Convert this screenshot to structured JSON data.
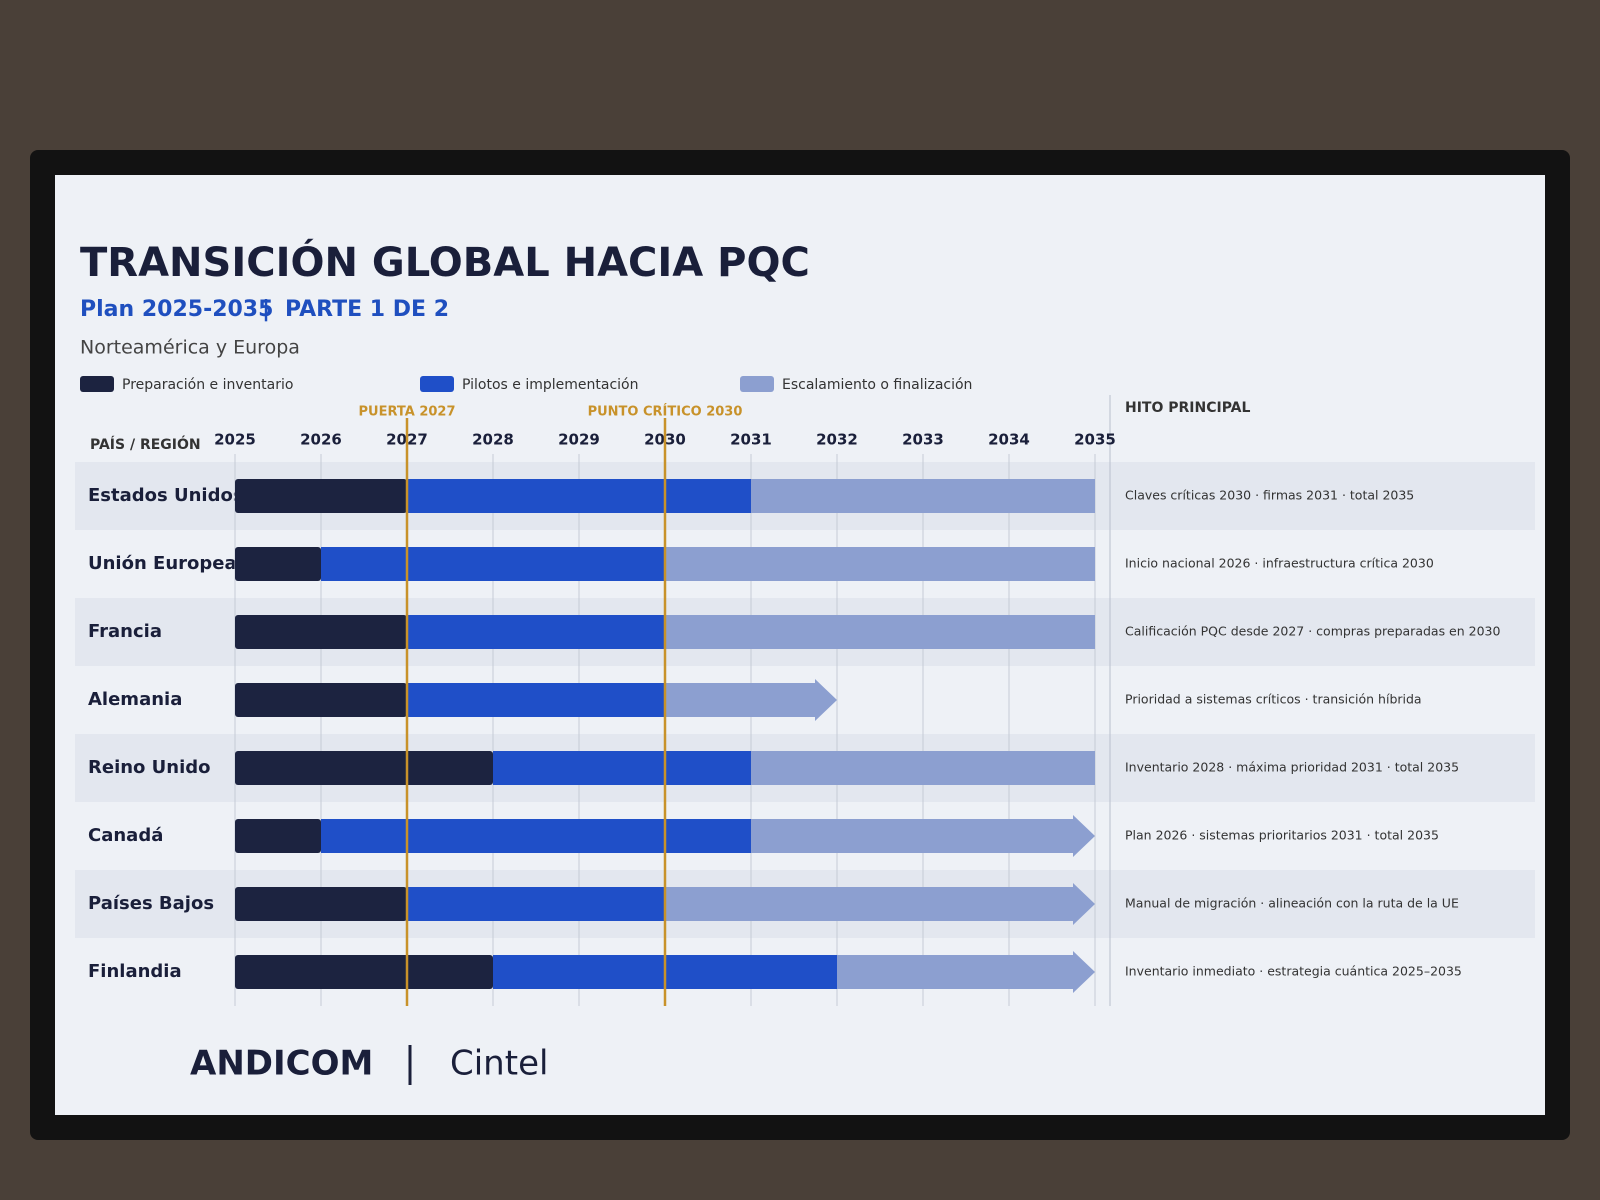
{
  "chart_data": {
    "type": "gantt",
    "title": "TRANSICIÓN GLOBAL HACIA PQC",
    "subtitle": "Plan 2025-2035",
    "part": "PARTE 1 DE 2",
    "region": "Norteamérica y Europa",
    "category_header": "PAÍS / REGIÓN",
    "milestone_header": "HITO PRINCIPAL",
    "categories": [
      "Estados Unidos",
      "Unión Europea",
      "Francia",
      "Alemania",
      "Reino Unido",
      "Canadá",
      "Países Bajos",
      "Finlandia"
    ],
    "series": [
      {
        "name": "Preparación e inventario",
        "color": "#1c2340",
        "values": [
          [
            2025,
            2027
          ],
          [
            2025,
            2026
          ],
          [
            2025,
            2027
          ],
          [
            2025,
            2027
          ],
          [
            2025,
            2028
          ],
          [
            2025,
            2026
          ],
          [
            2025,
            2027
          ],
          [
            2025,
            2028
          ]
        ]
      },
      {
        "name": "Pilotos e implementación",
        "color": "#1f4fc8",
        "values": [
          [
            2027,
            2031
          ],
          [
            2026,
            2030
          ],
          [
            2027,
            2030
          ],
          [
            2027,
            2030
          ],
          [
            2028,
            2031
          ],
          [
            2026,
            2031
          ],
          [
            2027,
            2030
          ],
          [
            2028,
            2032
          ]
        ]
      },
      {
        "name": "Escalamiento o finalización",
        "color": "#8c9fd0",
        "values": [
          [
            2031,
            2035
          ],
          [
            2030,
            2035
          ],
          [
            2030,
            2035
          ],
          [
            2030,
            2032
          ],
          [
            2031,
            2035
          ],
          [
            2031,
            2035
          ],
          [
            2030,
            2035
          ],
          [
            2032,
            2035
          ]
        ],
        "arrow": [
          false,
          false,
          false,
          true,
          false,
          true,
          true,
          true
        ]
      }
    ],
    "milestones": [
      "Claves críticas 2030 · firmas 2031 · total 2035",
      "Inicio nacional 2026 · infraestructura crítica 2030",
      "Calificación PQC desde 2027 · compras preparadas en 2030",
      "Prioridad a sistemas críticos · transición híbrida",
      "Inventario 2028 · máxima prioridad 2031 · total 2035",
      "Plan 2026 · sistemas prioritarios 2031 · total 2035",
      "Manual de migración · alineación con la ruta de la UE",
      "Inventario inmediato · estrategia cuántica 2025–2035"
    ],
    "xlim": [
      2025,
      2035
    ],
    "xticks": [
      2025,
      2026,
      2027,
      2028,
      2029,
      2030,
      2031,
      2032,
      2033,
      2034,
      2035
    ],
    "grid": true,
    "annotations": [
      {
        "label": "PUERTA 2027",
        "value": 2027,
        "color": "#c8922a"
      },
      {
        "label": "PUNTO CRÍTICO 2030",
        "value": 2030,
        "color": "#c8922a"
      }
    ]
  },
  "footer": {
    "logos": [
      "ANDICOM",
      "Cintel"
    ]
  }
}
